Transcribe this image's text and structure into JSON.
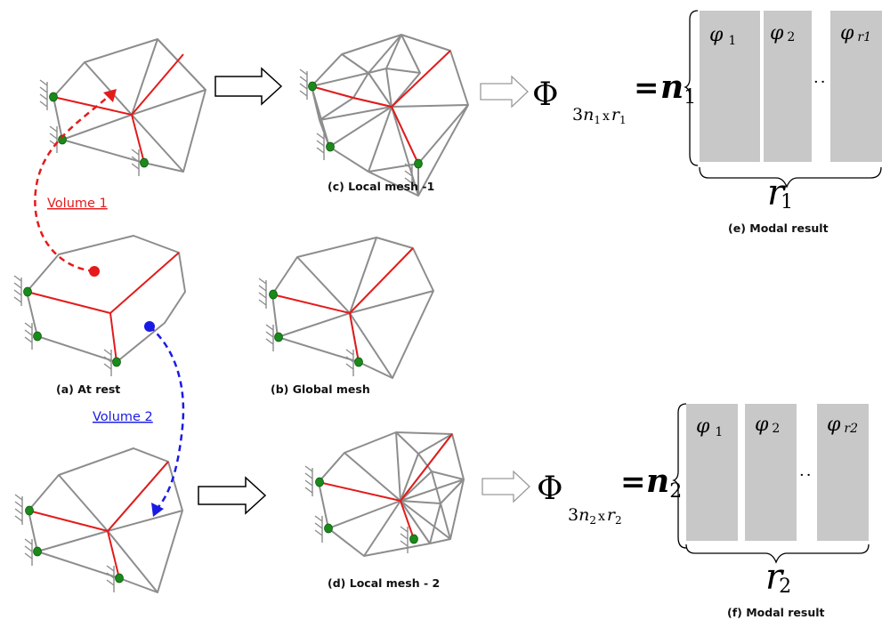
{
  "captions": {
    "a": "(a) At rest",
    "b": "(b) Global mesh",
    "c": "(c) Local mesh -1",
    "d": "(d) Local mesh - 2",
    "e": "(e) Modal result",
    "f": "(f) Modal result"
  },
  "volumes": {
    "v1": {
      "label": "Volume 1",
      "color": "#e31b1b"
    },
    "v2": {
      "label": "Volume 2",
      "color": "#1a1ae6"
    }
  },
  "modal_top": {
    "phi": "Φ",
    "sub_3": "3",
    "sub_n": "n",
    "sub_n_idx": "1",
    "sub_x": "x",
    "sub_r": "r",
    "sub_r_idx": "1",
    "equals": "=",
    "rows_n": "n",
    "rows_n_idx": "1",
    "blocks": [
      "φ",
      "φ",
      "φ"
    ],
    "block_idx": [
      "1",
      "2",
      "r1"
    ],
    "dots": "·",
    "cols_r": "r",
    "cols_r_idx": "1"
  },
  "modal_bottom": {
    "phi": "Φ",
    "sub_3": "3",
    "sub_n": "n",
    "sub_n_idx": "2",
    "sub_x": "x",
    "sub_r": "r",
    "sub_r_idx": "2",
    "equals": "=",
    "rows_n": "n",
    "rows_n_idx": "2",
    "blocks": [
      "φ",
      "φ",
      "φ"
    ],
    "block_idx": [
      "1",
      "2",
      "r2"
    ],
    "dots": "·",
    "cols_r": "r",
    "cols_r_idx": "2"
  },
  "colors": {
    "mesh_edge": "#8d8d8d",
    "constraint_edge": "#e31b1b",
    "fixed_node": "#1a8a1a",
    "modal_block": "#c8c8c8"
  }
}
